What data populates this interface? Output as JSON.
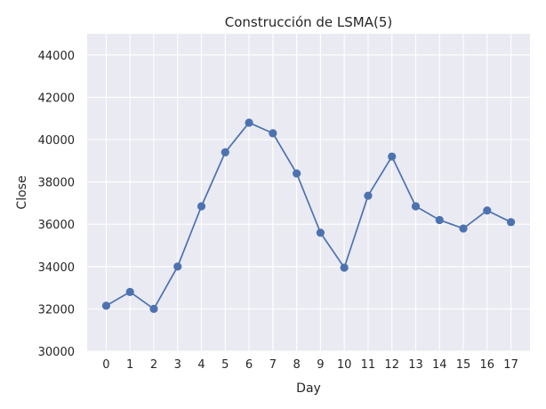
{
  "chart_data": {
    "type": "line",
    "title": "Construcción de LSMA(5)",
    "xlabel": "Day",
    "ylabel": "Close",
    "x": [
      0,
      1,
      2,
      3,
      4,
      5,
      6,
      7,
      8,
      9,
      10,
      11,
      12,
      13,
      14,
      15,
      16,
      17
    ],
    "series": [
      {
        "values": [
          32150,
          32800,
          32000,
          34000,
          36850,
          39400,
          40800,
          40300,
          38400,
          35600,
          33950,
          37350,
          39200,
          36850,
          36200,
          35800,
          36650,
          36100
        ]
      }
    ],
    "xlim": [
      -0.8,
      17.8
    ],
    "ylim": [
      30000,
      45000
    ],
    "yticks": [
      30000,
      32000,
      34000,
      36000,
      38000,
      40000,
      42000,
      44000
    ],
    "grid": true,
    "style": {
      "background": "#eaeaf2",
      "grid_color": "#ffffff",
      "line_color": "#4c72b0"
    }
  }
}
